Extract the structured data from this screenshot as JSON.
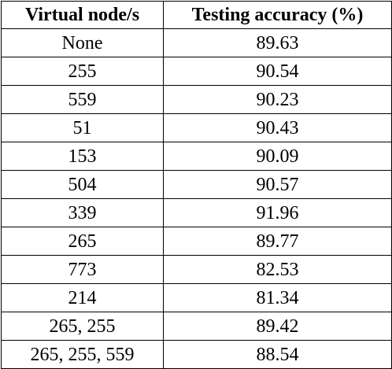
{
  "table": {
    "headers": [
      "Virtual node/s",
      "Testing accuracy (%)"
    ],
    "rows": [
      [
        "None",
        "89.63"
      ],
      [
        "255",
        "90.54"
      ],
      [
        "559",
        "90.23"
      ],
      [
        "51",
        "90.43"
      ],
      [
        "153",
        "90.09"
      ],
      [
        "504",
        "90.57"
      ],
      [
        "339",
        "91.96"
      ],
      [
        "265",
        "89.77"
      ],
      [
        "773",
        "82.53"
      ],
      [
        "214",
        "81.34"
      ],
      [
        "265, 255",
        "89.42"
      ],
      [
        "265, 255, 559",
        "88.54"
      ]
    ]
  }
}
